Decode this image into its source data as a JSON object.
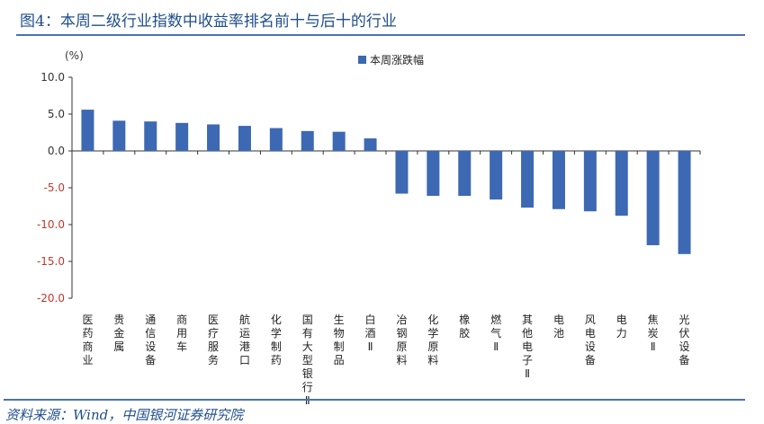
{
  "header": {
    "title": "图4：本周二级行业指数中收益率排名前十与后十的行业"
  },
  "footer": {
    "source": "资料来源：Wind，中国银河证券研究院"
  },
  "chart_data": {
    "type": "bar",
    "unit_label": "(%)",
    "legend_position": "top-center",
    "ylim": [
      -20,
      10
    ],
    "yticks": [
      "10.0",
      "5.0",
      "0.0",
      "-5.0",
      "-10.0",
      "-15.0",
      "-20.0"
    ],
    "categories": [
      "医药商业",
      "贵金属",
      "通信设备",
      "商用车",
      "医疗服务",
      "航运港口",
      "化学制药",
      "国有大型银行Ⅱ",
      "生物制品",
      "白酒Ⅱ",
      "冶钢原料",
      "化学原料",
      "橡胶",
      "燃气Ⅱ",
      "其他电子Ⅱ",
      "电池",
      "风电设备",
      "电力",
      "焦炭Ⅱ",
      "光伏设备"
    ],
    "series": [
      {
        "name": "本周涨跌幅",
        "color": "#3d68b3",
        "values": [
          5.6,
          4.1,
          4.0,
          3.8,
          3.6,
          3.4,
          3.1,
          2.7,
          2.6,
          1.7,
          -5.8,
          -6.1,
          -6.1,
          -6.6,
          -7.7,
          -7.9,
          -8.2,
          -8.8,
          -12.8,
          -14.0
        ]
      }
    ]
  }
}
